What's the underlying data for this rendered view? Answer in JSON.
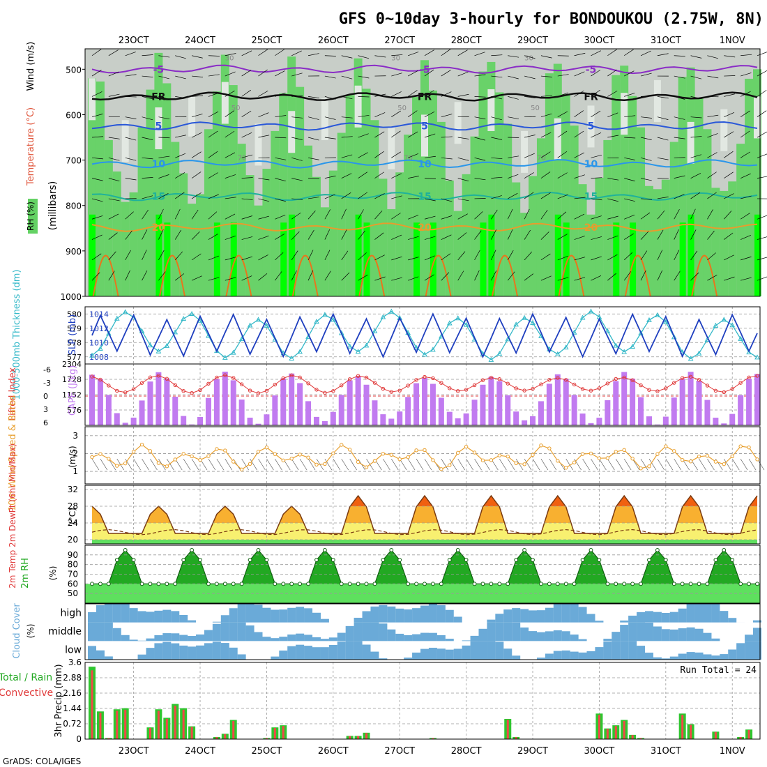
{
  "title": "GFS 0~10day 3-hourly for BONDOUKOU (2.75W, 8N)",
  "footer": "GrADS: COLA/IGES",
  "chart_data": {
    "type": "meteogram",
    "x_date_labels": [
      "23OCT",
      "24OCT",
      "25OCT",
      "26OCT",
      "27OCT",
      "28OCT",
      "29OCT",
      "30OCT",
      "31OCT",
      "1NOV"
    ],
    "steps_3h": 81,
    "profile": {
      "y_title": "(millibars)",
      "legend_labels": [
        "Wind (m/s)",
        "Temperature (°C)",
        "RH (%)"
      ],
      "yticks": [
        500,
        600,
        700,
        800,
        900,
        1000
      ],
      "ylim": [
        1000,
        455
      ],
      "isotherms": [
        {
          "label": "-5",
          "p": 500,
          "color": "#8a2cc6"
        },
        {
          "label": "FR",
          "p": 560,
          "color": "#111111"
        },
        {
          "label": "5",
          "p": 625,
          "color": "#2a58d8"
        },
        {
          "label": "10",
          "p": 708,
          "color": "#2a96ea"
        },
        {
          "label": "15",
          "p": 780,
          "color": "#1fb29b"
        },
        {
          "label": "20",
          "p": 848,
          "color": "#e89c2c"
        }
      ],
      "rh_contour_labels": [
        "30",
        "50",
        "70"
      ]
    },
    "slp_thickness": {
      "left_label": "1000-500mb Thickness (dm)",
      "right_label": "SLP (mb)",
      "thickness_ticks": [
        577,
        578,
        579,
        580
      ],
      "slp_ticks": [
        1008,
        1010,
        1012,
        1014
      ],
      "thickness_range": [
        576.5,
        580.5
      ],
      "slp_range": [
        1007,
        1015
      ]
    },
    "cape_li": {
      "left_label": "Lifted Index",
      "right_label": "CAPE (J/kg)",
      "li_ticks": [
        "-6",
        "-3",
        "0",
        "3",
        "6"
      ],
      "cape_ticks": [
        576,
        1152,
        1728,
        2304
      ],
      "cape_max": 2304
    },
    "wind10m": {
      "left_label": "10m Wind Speed & Barbs",
      "unit": "(m/s)",
      "yticks": [
        1,
        2,
        3
      ],
      "ylim": [
        0.3,
        3.5
      ]
    },
    "temp2m": {
      "left_label": "2m Temp 2m DewPt (6hr Min/Max)",
      "unit": "(°C)",
      "yticks": [
        20,
        24,
        28,
        32
      ],
      "ylim": [
        19,
        33
      ]
    },
    "rh2m": {
      "left_label": "2m RH",
      "unit": "(%)",
      "yticks": [
        50,
        60,
        70,
        80,
        90
      ],
      "ylim": [
        40,
        100
      ]
    },
    "cloud": {
      "left_label": "Cloud Cover",
      "unit": "(%)",
      "levels": [
        "high",
        "middle",
        "low"
      ]
    },
    "precip": {
      "y_title": "3hr Precip (mm)",
      "left_label_total": "Total / Rain",
      "left_label_conv": "Convective",
      "yticks": [
        "0",
        "0.72",
        "1.44",
        "2.16",
        "2.88",
        "3.6"
      ],
      "ymax": 3.6,
      "run_total_label": "Run Total = 24",
      "values": [
        3.4,
        1.3,
        0.05,
        1.4,
        1.45,
        0,
        0,
        0.55,
        1.4,
        1.0,
        1.65,
        1.45,
        0.6,
        0,
        0,
        0.1,
        0.25,
        0.9,
        0,
        0,
        0,
        0.05,
        0.55,
        0.65,
        0,
        0,
        0,
        0,
        0,
        0,
        0,
        0.15,
        0.15,
        0.3,
        0,
        0,
        0,
        0,
        0,
        0,
        0,
        0.05,
        0,
        0,
        0,
        0,
        0,
        0,
        0,
        0,
        0.95,
        0.1,
        0,
        0,
        0,
        0,
        0,
        0,
        0,
        0,
        0,
        1.2,
        0.5,
        0.65,
        0.9,
        0.2,
        0.05,
        0,
        0,
        0,
        0,
        1.2,
        0.7,
        0,
        0,
        0.35,
        0,
        0,
        0.1,
        0.45,
        0
      ]
    },
    "colors": {
      "rh_dry": "#c8cec8",
      "rh_mid": "#e2e8e2",
      "rh_moist": "#64d264",
      "rh_wet": "#00ff00",
      "slp_line": "#1f3fbf",
      "thickness_line": "#33b8c8",
      "cape_bar": "#c17bf0",
      "li_line": "#e03a3a",
      "wind_line": "#e8a030",
      "cloud_fill": "#6aaad8",
      "precip_total": "#2fc62f",
      "precip_conv": "#f04848"
    }
  }
}
